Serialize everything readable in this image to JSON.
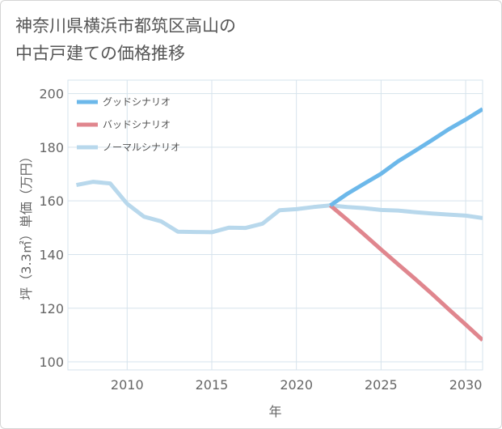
{
  "title": {
    "line1": "神奈川県横浜市都筑区高山の",
    "line2": "中古戸建ての価格推移"
  },
  "chart_data": {
    "type": "line",
    "xlabel": "年",
    "ylabel": "坪（3.3㎡）単価（万円）",
    "xlim": [
      2006.5,
      2031
    ],
    "ylim": [
      97,
      205
    ],
    "x_ticks": [
      2010,
      2015,
      2020,
      2025,
      2030
    ],
    "y_ticks": [
      100,
      120,
      140,
      160,
      180,
      200
    ],
    "grid": true,
    "legend_position": "top-left",
    "series": [
      {
        "name": "グッドシナリオ",
        "color": "#6cb8ea",
        "x": [
          2022,
          2023,
          2024,
          2025,
          2026,
          2027,
          2028,
          2029,
          2030,
          2031
        ],
        "y": [
          158.3,
          162.6,
          166.4,
          170.1,
          174.7,
          178.6,
          182.6,
          186.7,
          190.3,
          194.2
        ]
      },
      {
        "name": "バッドシナリオ",
        "color": "#e0868e",
        "x": [
          2022,
          2023,
          2024,
          2025,
          2026,
          2027,
          2028,
          2029,
          2030,
          2031
        ],
        "y": [
          158.3,
          153.0,
          147.5,
          141.9,
          136.4,
          131.0,
          125.4,
          119.6,
          113.9,
          108.1
        ]
      },
      {
        "name": "ノーマルシナリオ",
        "color": "#b8d8ec",
        "x": [
          2007,
          2008,
          2009,
          2010,
          2011,
          2012,
          2013,
          2014,
          2015,
          2016,
          2017,
          2018,
          2019,
          2020,
          2021,
          2022,
          2023,
          2024,
          2025,
          2026,
          2027,
          2028,
          2029,
          2030,
          2031
        ],
        "y": [
          165.9,
          167.1,
          166.5,
          158.9,
          154.1,
          152.4,
          148.5,
          148.4,
          148.3,
          150.0,
          149.9,
          151.5,
          156.5,
          156.9,
          157.7,
          158.3,
          157.7,
          157.3,
          156.6,
          156.4,
          155.8,
          155.3,
          154.9,
          154.5,
          153.6
        ]
      }
    ]
  }
}
